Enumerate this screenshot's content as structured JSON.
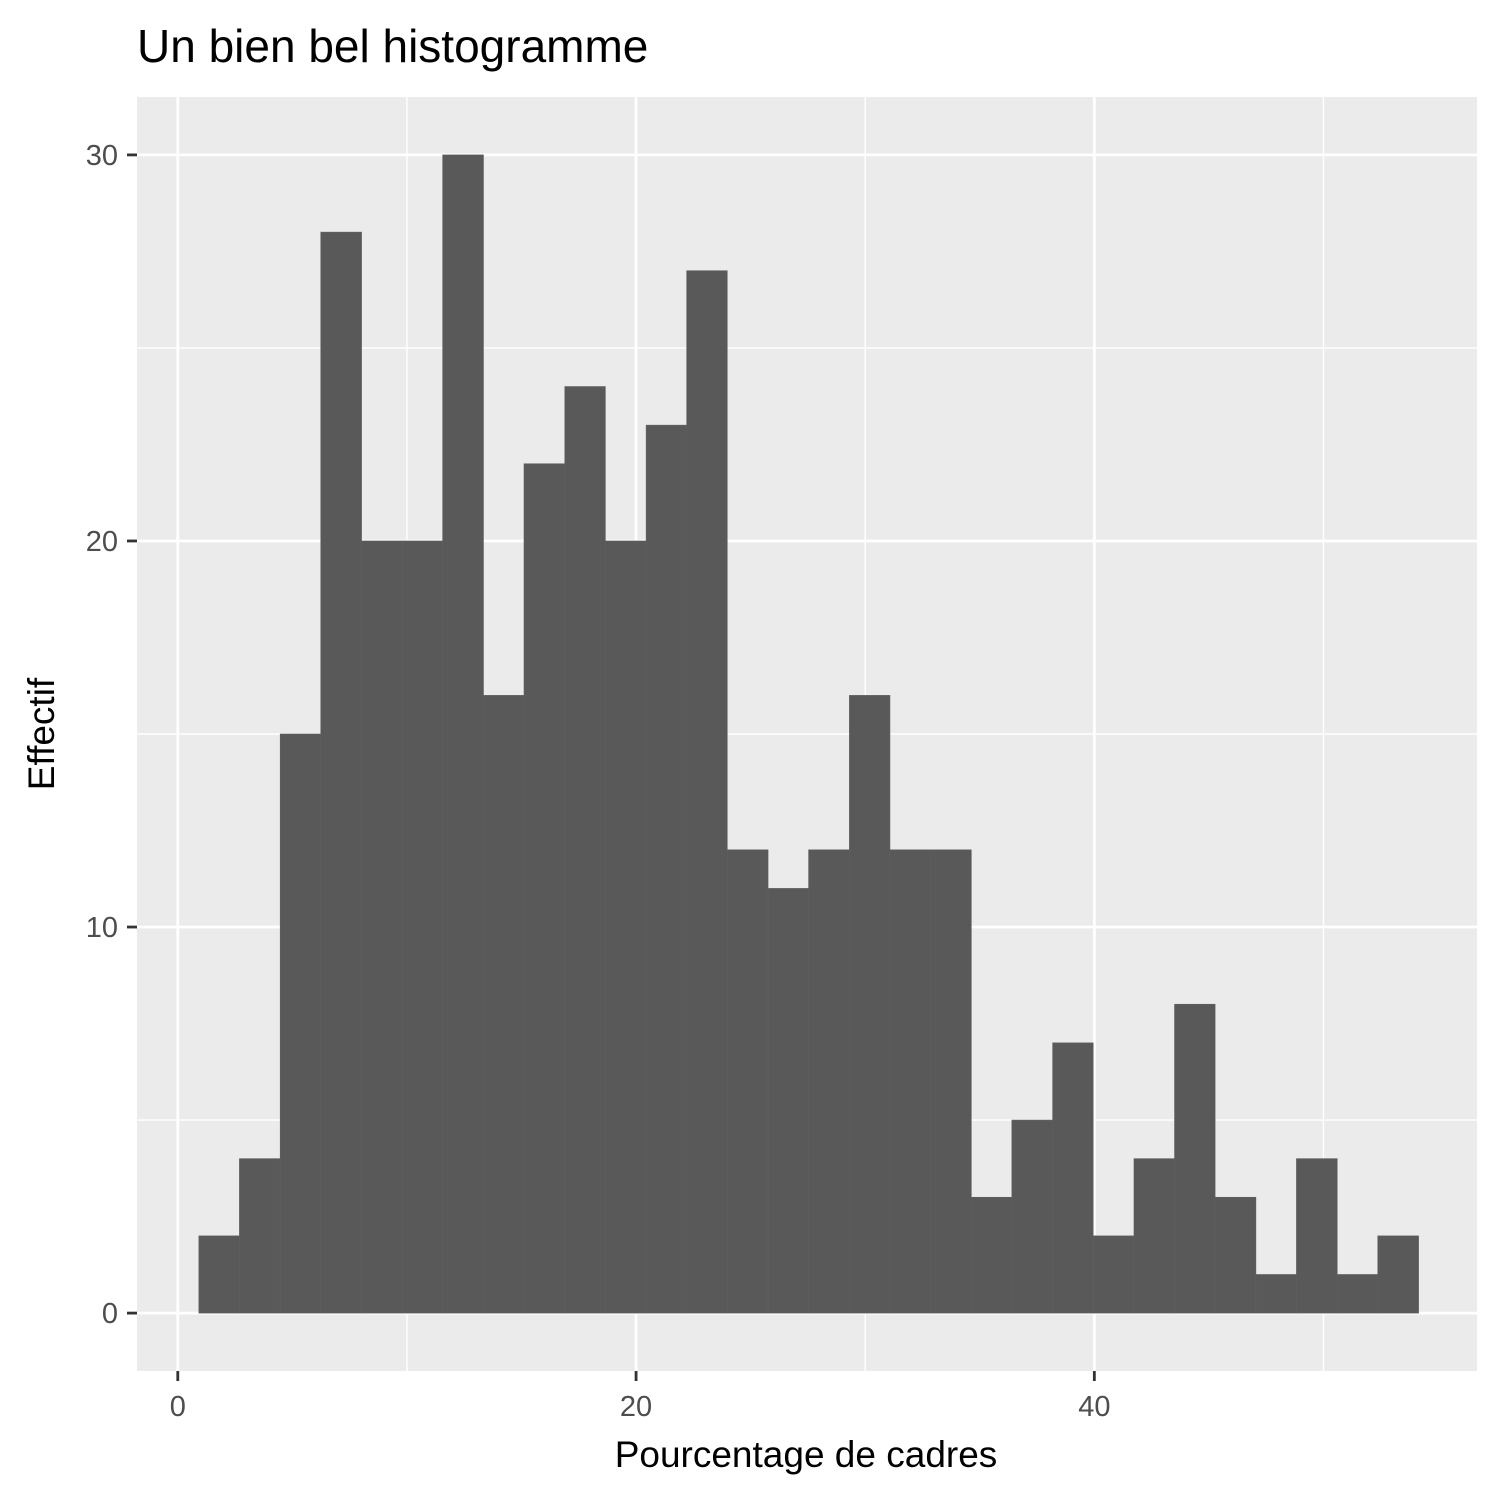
{
  "chart_data": {
    "type": "bar",
    "subtype": "histogram",
    "title": "Un bien bel histogramme",
    "xlabel": "Pourcentage de cadres",
    "ylabel": "Effectif",
    "xlim": [
      -1.78,
      56.7
    ],
    "ylim": [
      -1.5,
      31.5
    ],
    "x_ticks": [
      0,
      20,
      40
    ],
    "y_ticks": [
      0,
      10,
      20,
      30
    ],
    "grid": true,
    "bin_width": 1.774,
    "bins": [
      {
        "x0": 0.92,
        "x1": 2.69,
        "count": 2
      },
      {
        "x0": 2.69,
        "x1": 4.47,
        "count": 4
      },
      {
        "x0": 4.47,
        "x1": 6.24,
        "count": 15
      },
      {
        "x0": 6.24,
        "x1": 8.02,
        "count": 28
      },
      {
        "x0": 8.02,
        "x1": 9.79,
        "count": 20
      },
      {
        "x0": 9.79,
        "x1": 11.56,
        "count": 20
      },
      {
        "x0": 11.56,
        "x1": 13.34,
        "count": 30
      },
      {
        "x0": 13.34,
        "x1": 15.11,
        "count": 16
      },
      {
        "x0": 15.11,
        "x1": 16.89,
        "count": 22
      },
      {
        "x0": 16.89,
        "x1": 18.66,
        "count": 24
      },
      {
        "x0": 18.66,
        "x1": 20.44,
        "count": 20
      },
      {
        "x0": 20.44,
        "x1": 22.21,
        "count": 23
      },
      {
        "x0": 22.21,
        "x1": 23.98,
        "count": 27
      },
      {
        "x0": 23.98,
        "x1": 25.76,
        "count": 12
      },
      {
        "x0": 25.76,
        "x1": 27.53,
        "count": 11
      },
      {
        "x0": 27.53,
        "x1": 29.31,
        "count": 12
      },
      {
        "x0": 29.31,
        "x1": 31.08,
        "count": 16
      },
      {
        "x0": 31.08,
        "x1": 32.86,
        "count": 12
      },
      {
        "x0": 32.86,
        "x1": 34.63,
        "count": 12
      },
      {
        "x0": 34.63,
        "x1": 36.4,
        "count": 3
      },
      {
        "x0": 36.4,
        "x1": 38.18,
        "count": 5
      },
      {
        "x0": 38.18,
        "x1": 39.95,
        "count": 7
      },
      {
        "x0": 39.95,
        "x1": 41.73,
        "count": 2
      },
      {
        "x0": 41.73,
        "x1": 43.5,
        "count": 4
      },
      {
        "x0": 43.5,
        "x1": 45.27,
        "count": 8
      },
      {
        "x0": 45.27,
        "x1": 47.05,
        "count": 3
      },
      {
        "x0": 47.05,
        "x1": 48.82,
        "count": 1
      },
      {
        "x0": 48.82,
        "x1": 50.6,
        "count": 4
      },
      {
        "x0": 50.6,
        "x1": 52.37,
        "count": 1
      },
      {
        "x0": 52.37,
        "x1": 54.15,
        "count": 2
      }
    ],
    "colors": {
      "bar_fill": "#595959",
      "bar_outline": "#5f5f5f",
      "panel_background": "#ebebeb",
      "gridline": "#ffffff",
      "tick_text": "#4d4d4d",
      "tick_mark": "#333333",
      "text": "#000000"
    }
  }
}
